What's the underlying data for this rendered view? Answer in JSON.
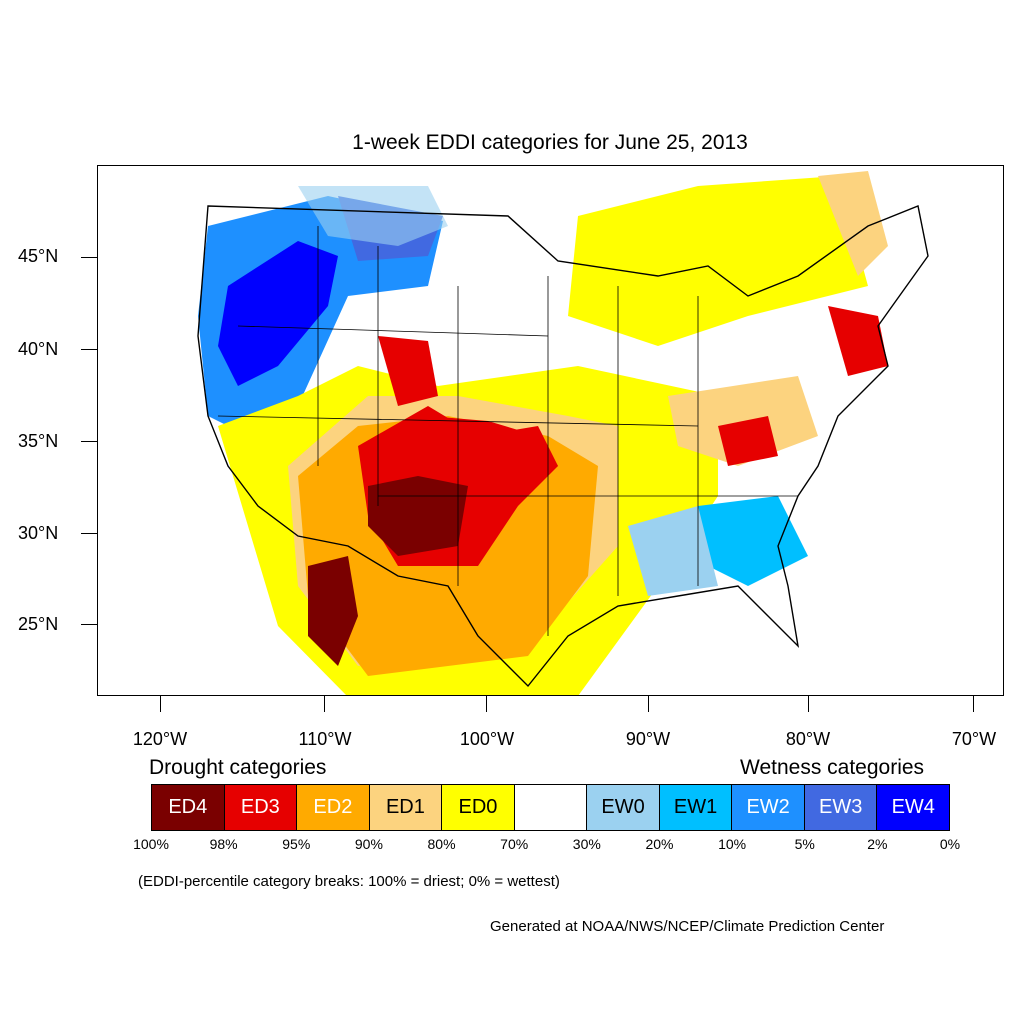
{
  "title": "1-week EDDI categories for June 25, 2013",
  "lat_labels": [
    "45°N",
    "40°N",
    "35°N",
    "30°N",
    "25°N"
  ],
  "lon_labels": [
    "120°W",
    "110°W",
    "100°W",
    "90°W",
    "80°W",
    "70°W"
  ],
  "legend": {
    "drought_heading": "Drought categories",
    "wetness_heading": "Wetness categories",
    "categories": [
      {
        "label": "ED4",
        "color": "#7a0000",
        "text_color": "#ffffff"
      },
      {
        "label": "ED3",
        "color": "#e60000",
        "text_color": "#ffffff"
      },
      {
        "label": "ED2",
        "color": "#ffaa00",
        "text_color": "#ffffff"
      },
      {
        "label": "ED1",
        "color": "#fcd37f",
        "text_color": "#000000"
      },
      {
        "label": "ED0",
        "color": "#ffff00",
        "text_color": "#000000"
      },
      {
        "label": "",
        "color": "#ffffff",
        "text_color": "#000000"
      },
      {
        "label": "EW0",
        "color": "#9bd1f0",
        "text_color": "#000000"
      },
      {
        "label": "EW1",
        "color": "#00bfff",
        "text_color": "#000000"
      },
      {
        "label": "EW2",
        "color": "#1e90ff",
        "text_color": "#ffffff"
      },
      {
        "label": "EW3",
        "color": "#4169e1",
        "text_color": "#ffffff"
      },
      {
        "label": "EW4",
        "color": "#0000ff",
        "text_color": "#ffffff"
      }
    ],
    "percentiles": [
      "100%",
      "98%",
      "95%",
      "90%",
      "80%",
      "70%",
      "30%",
      "20%",
      "10%",
      "5%",
      "2%",
      "0%"
    ]
  },
  "note": "(EDDI-percentile category breaks: 100% = driest; 0% = wettest)",
  "credit": "Generated at NOAA/NWS/NCEP/Climate Prediction Center"
}
